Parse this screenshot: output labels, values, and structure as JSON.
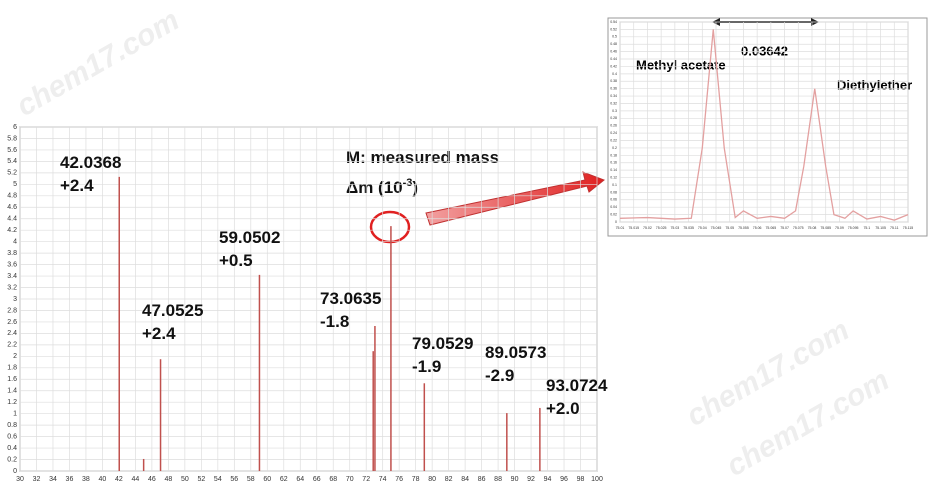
{
  "chart_data": [
    {
      "type": "spectrum",
      "xlim": [
        30,
        100
      ],
      "xticks": [
        30,
        32,
        34,
        36,
        38,
        40,
        42,
        44,
        46,
        48,
        50,
        52,
        54,
        56,
        58,
        60,
        62,
        64,
        66,
        68,
        70,
        72,
        74,
        76,
        78,
        80,
        82,
        84,
        86,
        88,
        90,
        92,
        94,
        96,
        98,
        100
      ],
      "ylim": [
        0,
        6
      ],
      "yticks": [
        0,
        0.2,
        0.4,
        0.6,
        0.8,
        1,
        1.2,
        1.4,
        1.6,
        1.8,
        2,
        2.2,
        2.4,
        2.6,
        2.8,
        3,
        3.2,
        3.4,
        3.6,
        3.8,
        4,
        4.2,
        4.4,
        4.6,
        4.8,
        5,
        5.2,
        5.4,
        5.6,
        5.8,
        6
      ],
      "grid": true,
      "color": "#c0504d",
      "x": [
        42.04,
        45.0,
        47.05,
        59.05,
        72.85,
        73.06,
        75.0,
        79.05,
        89.06,
        93.07
      ],
      "values": [
        5.13,
        0.21,
        1.95,
        3.42,
        2.09,
        2.53,
        4.27,
        1.53,
        1.01,
        1.1
      ],
      "annotations": [
        {
          "mass": "42.0368",
          "delta": "+2.4"
        },
        {
          "mass": "47.0525",
          "delta": "+2.4"
        },
        {
          "mass": "59.0502",
          "delta": "+0.5"
        },
        {
          "mass": "73.0635",
          "delta": "-1.8"
        },
        {
          "mass": "79.0529",
          "delta": "-1.9"
        },
        {
          "mass": "89.0573",
          "delta": "-2.9"
        },
        {
          "mass": "93.0724",
          "delta": "+2.0"
        }
      ],
      "key": {
        "line1": "M:  measured mass",
        "line2": "Δm (10",
        "sup": "-3",
        "close": ")"
      }
    },
    {
      "type": "line",
      "xlim": [
        75.01,
        75.115
      ],
      "xticks": [
        75.01,
        75.015,
        75.02,
        75.025,
        75.03,
        75.035,
        75.04,
        75.045,
        75.05,
        75.055,
        75.06,
        75.065,
        75.07,
        75.075,
        75.08,
        75.085,
        75.09,
        75.095,
        75.1,
        75.105,
        75.11,
        75.115
      ],
      "ylim": [
        0,
        0.54
      ],
      "yticks": [
        0,
        0.02,
        0.04,
        0.06,
        0.08,
        0.1,
        0.12,
        0.14,
        0.16,
        0.18,
        0.2,
        0.22,
        0.24,
        0.26,
        0.28,
        0.3,
        0.32,
        0.34,
        0.36,
        0.38,
        0.4,
        0.42,
        0.44,
        0.46,
        0.48,
        0.5,
        0.52,
        0.54
      ],
      "grid": true,
      "color": "#e3a0a0",
      "x": [
        75.01,
        75.02,
        75.03,
        75.036,
        75.04,
        75.044,
        75.048,
        75.052,
        75.055,
        75.06,
        75.065,
        75.07,
        75.074,
        75.077,
        75.081,
        75.085,
        75.088,
        75.092,
        75.095,
        75.1,
        75.105,
        75.11,
        75.115
      ],
      "values": [
        0.01,
        0.012,
        0.008,
        0.01,
        0.2,
        0.52,
        0.2,
        0.012,
        0.03,
        0.01,
        0.015,
        0.01,
        0.03,
        0.15,
        0.36,
        0.15,
        0.02,
        0.01,
        0.03,
        0.008,
        0.015,
        0.005,
        0.02
      ],
      "labels": {
        "peak1": "Methyl acetate",
        "peak2": "Diethylether",
        "separation": "0.03642"
      }
    }
  ],
  "watermarks": [
    "chem17.com",
    "chem17.com",
    "chem17.com"
  ]
}
